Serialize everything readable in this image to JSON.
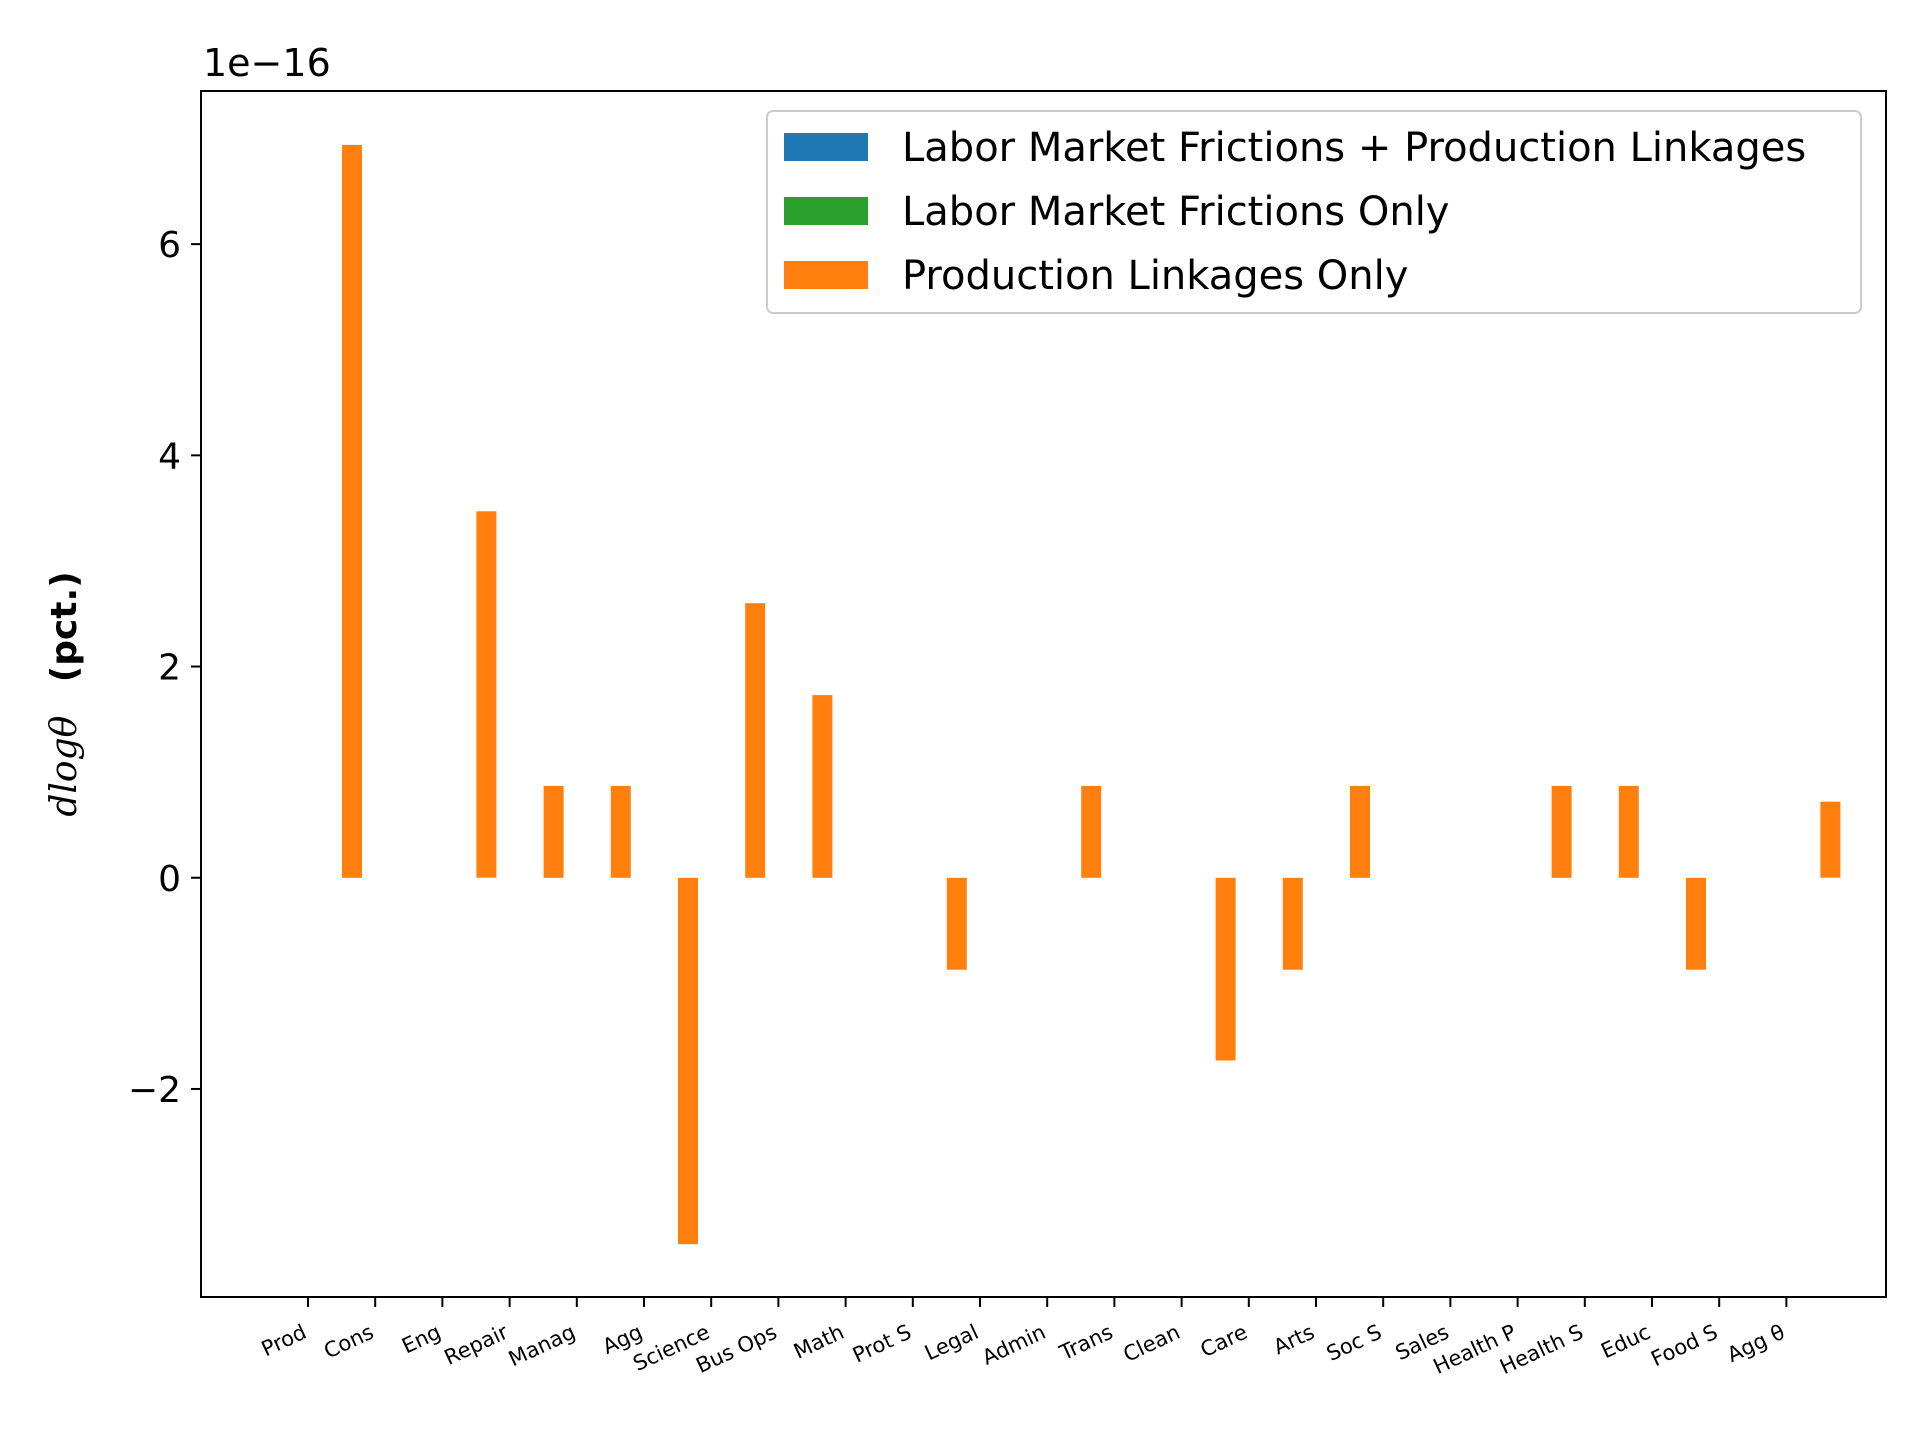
{
  "chart_data": {
    "type": "bar",
    "offset_label": "1e−16",
    "ylabel_math": "dlogθ",
    "ylabel_bold": "(pct.)",
    "categories": [
      "Prod",
      "Cons",
      "Eng",
      "Repair",
      "Manag",
      "Agg",
      "Science",
      "Bus Ops",
      "Math",
      "Prot S",
      "Legal",
      "Admin",
      "Trans",
      "Clean",
      "Care",
      "Arts",
      "Soc S",
      "Sales",
      "Health P",
      "Health S",
      "Educ",
      "Food S",
      "Agg θ"
    ],
    "yticks": [
      -2,
      0,
      2,
      4,
      6
    ],
    "ytick_labels": [
      "−2",
      "0",
      "2",
      "4",
      "6"
    ],
    "ylim": [
      -3.97,
      7.45
    ],
    "grid": false,
    "legend_position": "top-right",
    "series": [
      {
        "name": "Labor Market Frictions + Production Linkages",
        "color": "#1f77b4",
        "values": [
          0,
          0,
          0,
          0,
          0,
          0,
          0,
          0,
          0,
          0,
          0,
          0,
          0,
          0,
          0,
          0,
          0,
          0,
          0,
          0,
          0,
          0,
          0
        ]
      },
      {
        "name": "Labor Market Frictions Only",
        "color": "#2ca02c",
        "values": [
          0,
          0,
          0,
          0,
          0,
          0,
          0,
          0,
          0,
          0,
          0,
          0,
          0,
          0,
          0,
          0,
          0,
          0,
          0,
          0,
          0,
          0,
          0
        ]
      },
      {
        "name": "Production Linkages Only",
        "color": "#ff7f0e",
        "values": [
          6.94,
          0,
          3.47,
          0.87,
          0.87,
          -3.47,
          2.6,
          1.73,
          0,
          -0.87,
          0,
          0.87,
          0,
          -1.73,
          -0.87,
          0.87,
          0,
          0,
          0.87,
          0.87,
          -0.87,
          0,
          0.72
        ]
      }
    ]
  }
}
